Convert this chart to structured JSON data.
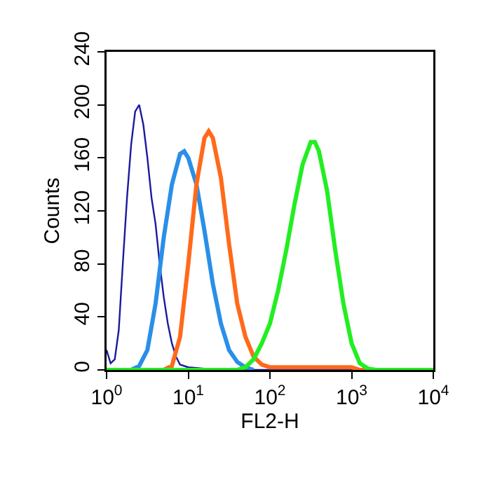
{
  "chart_data": {
    "type": "line",
    "xlabel": "FL2-H",
    "ylabel": "Counts",
    "log": "x",
    "grid": false,
    "xlim": [
      1,
      10000
    ],
    "ylim": [
      0,
      240
    ],
    "xticks": [
      {
        "value": 1,
        "label": "10$^{0}$"
      },
      {
        "value": 10,
        "label": "10$^{1}$"
      },
      {
        "value": 100,
        "label": "10$^{2}$"
      },
      {
        "value": 1000,
        "label": "10$^{3}$"
      },
      {
        "value": 10000,
        "label": "10$^{4}$"
      }
    ],
    "yticks": [
      0,
      40,
      80,
      120,
      160,
      200,
      240
    ],
    "series": [
      {
        "color": "#1a1aa0",
        "x": [
          1,
          1.12,
          1.26,
          1.41,
          1.58,
          1.78,
          2.0,
          2.24,
          2.51,
          2.82,
          3.16,
          3.55,
          3.98,
          4.47,
          5.01,
          5.62,
          6.31,
          7.08,
          7.94,
          10,
          15.8,
          31.6,
          10000
        ],
        "values": [
          15,
          5,
          8,
          30,
          80,
          130,
          170,
          195,
          200,
          185,
          160,
          130,
          110,
          80,
          55,
          35,
          20,
          10,
          4,
          2,
          1,
          0,
          0
        ]
      },
      {
        "color": "#2a8fe8",
        "x": [
          2.0,
          2.51,
          3.16,
          3.98,
          5.01,
          6.31,
          7.94,
          8.91,
          10,
          12.6,
          15.8,
          20,
          25.1,
          31.6,
          39.8,
          50.1,
          63.1
        ],
        "values": [
          0,
          3,
          15,
          50,
          100,
          140,
          163,
          165,
          160,
          140,
          105,
          65,
          35,
          15,
          6,
          2,
          0
        ]
      },
      {
        "color": "#ff6a1a",
        "x": [
          5.01,
          6.31,
          7.94,
          10,
          12.6,
          15.8,
          17.8,
          20,
          25.1,
          31.6,
          39.8,
          50.1,
          63.1,
          79.4,
          100,
          1000,
          1259,
          10000
        ],
        "values": [
          0,
          3,
          25,
          80,
          140,
          175,
          180,
          175,
          145,
          95,
          50,
          25,
          10,
          4,
          2,
          2,
          0,
          0
        ]
      },
      {
        "color": "#22ee22",
        "x": [
          1,
          39.8,
          50.1,
          63.1,
          79.4,
          100,
          126,
          158,
          200,
          251,
          316,
          355,
          398,
          501,
          631,
          794,
          1000,
          1259,
          1585,
          1995,
          10000
        ],
        "values": [
          0,
          0,
          2,
          8,
          20,
          35,
          60,
          90,
          125,
          155,
          172,
          172,
          165,
          135,
          90,
          50,
          20,
          5,
          1,
          0,
          0
        ]
      }
    ]
  }
}
